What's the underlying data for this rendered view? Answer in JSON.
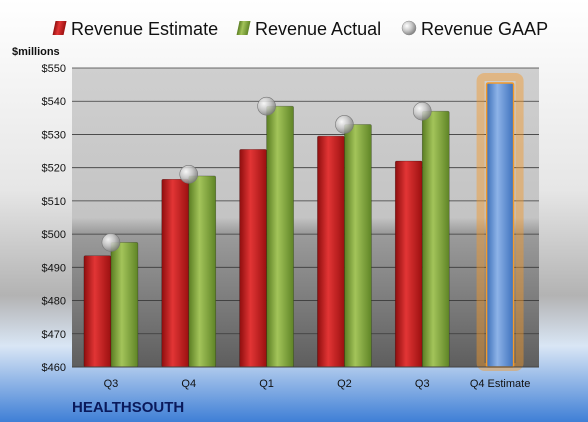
{
  "chart_data": {
    "type": "bar",
    "ylabel": "$millions",
    "ylim": [
      460,
      550
    ],
    "yticks": [
      "$460",
      "$470",
      "$480",
      "$490",
      "$500",
      "$510",
      "$520",
      "$530",
      "$540",
      "$550"
    ],
    "categories": [
      "Q3",
      "Q4",
      "Q1",
      "Q2",
      "Q3",
      "Q4 Estimate"
    ],
    "series": [
      {
        "name": "Revenue Estimate",
        "color": "#cc1f1f",
        "values": [
          493.5,
          516.5,
          525.5,
          529.5,
          522,
          null
        ]
      },
      {
        "name": "Revenue Actual",
        "color": "#7fa33a",
        "values": [
          497.5,
          517.5,
          538.5,
          533,
          537,
          null
        ]
      },
      {
        "name": "Revenue GAAP",
        "color": "#b8b8b8",
        "marker": "circle",
        "values": [
          497.5,
          518,
          538.5,
          533,
          537,
          null
        ]
      }
    ],
    "forecast": {
      "category": "Q4 Estimate",
      "value": 545.5,
      "color": "#5b8ed1",
      "highlight": "#f39a2b"
    },
    "legend_position": "top",
    "grid": true,
    "company": "HEALTHSOUTH"
  }
}
